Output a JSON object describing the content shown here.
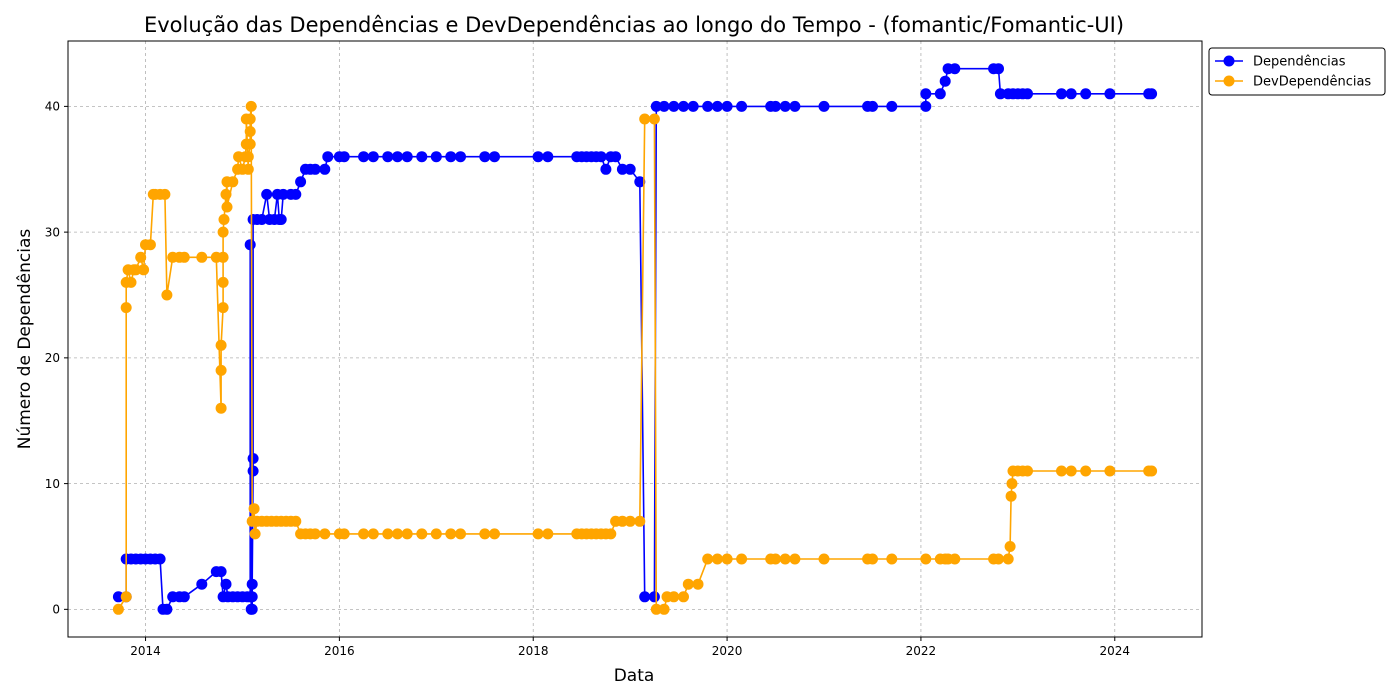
{
  "chart_data": {
    "type": "line",
    "title": "Evolução das Dependências e DevDependências ao longo do Tempo - (fomantic/Fomantic-UI)",
    "xlabel": "Data",
    "ylabel": "Número de Dependências",
    "xlim": [
      2013.2,
      2024.9
    ],
    "ylim": [
      -2.2,
      45.2
    ],
    "x_ticks": [
      2014,
      2016,
      2018,
      2020,
      2022,
      2024
    ],
    "y_ticks": [
      0,
      10,
      20,
      30,
      40
    ],
    "grid": true,
    "legend_position": "top-right outside",
    "series": [
      {
        "name": "Dependências",
        "color": "#0000ff",
        "points": [
          [
            2013.72,
            1
          ],
          [
            2013.8,
            1
          ],
          [
            2013.8,
            4
          ],
          [
            2013.85,
            4
          ],
          [
            2013.9,
            4
          ],
          [
            2013.95,
            4
          ],
          [
            2014.0,
            4
          ],
          [
            2014.05,
            4
          ],
          [
            2014.1,
            4
          ],
          [
            2014.15,
            4
          ],
          [
            2014.18,
            0
          ],
          [
            2014.22,
            0
          ],
          [
            2014.28,
            1
          ],
          [
            2014.35,
            1
          ],
          [
            2014.4,
            1
          ],
          [
            2014.58,
            2
          ],
          [
            2014.73,
            3
          ],
          [
            2014.78,
            3
          ],
          [
            2014.8,
            1
          ],
          [
            2014.83,
            2
          ],
          [
            2014.85,
            1
          ],
          [
            2014.9,
            1
          ],
          [
            2014.95,
            1
          ],
          [
            2015.0,
            1
          ],
          [
            2015.05,
            1
          ],
          [
            2015.08,
            1
          ],
          [
            2015.08,
            29
          ],
          [
            2015.09,
            0
          ],
          [
            2015.1,
            0
          ],
          [
            2015.1,
            1
          ],
          [
            2015.1,
            2
          ],
          [
            2015.11,
            11
          ],
          [
            2015.11,
            12
          ],
          [
            2015.11,
            31
          ],
          [
            2015.15,
            31
          ],
          [
            2015.2,
            31
          ],
          [
            2015.25,
            33
          ],
          [
            2015.28,
            31
          ],
          [
            2015.33,
            31
          ],
          [
            2015.36,
            33
          ],
          [
            2015.38,
            31
          ],
          [
            2015.4,
            31
          ],
          [
            2015.42,
            33
          ],
          [
            2015.5,
            33
          ],
          [
            2015.55,
            33
          ],
          [
            2015.6,
            34
          ],
          [
            2015.65,
            35
          ],
          [
            2015.7,
            35
          ],
          [
            2015.75,
            35
          ],
          [
            2015.85,
            35
          ],
          [
            2015.88,
            36
          ],
          [
            2016.0,
            36
          ],
          [
            2016.05,
            36
          ],
          [
            2016.25,
            36
          ],
          [
            2016.35,
            36
          ],
          [
            2016.5,
            36
          ],
          [
            2016.6,
            36
          ],
          [
            2016.7,
            36
          ],
          [
            2016.85,
            36
          ],
          [
            2017.0,
            36
          ],
          [
            2017.15,
            36
          ],
          [
            2017.25,
            36
          ],
          [
            2017.5,
            36
          ],
          [
            2017.6,
            36
          ],
          [
            2018.05,
            36
          ],
          [
            2018.15,
            36
          ],
          [
            2018.45,
            36
          ],
          [
            2018.5,
            36
          ],
          [
            2018.55,
            36
          ],
          [
            2018.6,
            36
          ],
          [
            2018.65,
            36
          ],
          [
            2018.7,
            36
          ],
          [
            2018.75,
            35
          ],
          [
            2018.8,
            36
          ],
          [
            2018.85,
            36
          ],
          [
            2018.92,
            35
          ],
          [
            2019.0,
            35
          ],
          [
            2019.1,
            34
          ],
          [
            2019.15,
            1
          ],
          [
            2019.25,
            1
          ],
          [
            2019.27,
            40
          ],
          [
            2019.35,
            40
          ],
          [
            2019.45,
            40
          ],
          [
            2019.55,
            40
          ],
          [
            2019.65,
            40
          ],
          [
            2019.8,
            40
          ],
          [
            2019.9,
            40
          ],
          [
            2020.0,
            40
          ],
          [
            2020.15,
            40
          ],
          [
            2020.45,
            40
          ],
          [
            2020.5,
            40
          ],
          [
            2020.6,
            40
          ],
          [
            2020.7,
            40
          ],
          [
            2021.0,
            40
          ],
          [
            2021.45,
            40
          ],
          [
            2021.5,
            40
          ],
          [
            2021.7,
            40
          ],
          [
            2022.05,
            40
          ],
          [
            2022.05,
            41
          ],
          [
            2022.2,
            41
          ],
          [
            2022.25,
            42
          ],
          [
            2022.28,
            43
          ],
          [
            2022.35,
            43
          ],
          [
            2022.75,
            43
          ],
          [
            2022.8,
            43
          ],
          [
            2022.82,
            41
          ],
          [
            2022.9,
            41
          ],
          [
            2022.95,
            41
          ],
          [
            2023.0,
            41
          ],
          [
            2023.05,
            41
          ],
          [
            2023.1,
            41
          ],
          [
            2023.45,
            41
          ],
          [
            2023.55,
            41
          ],
          [
            2023.7,
            41
          ],
          [
            2023.95,
            41
          ],
          [
            2024.35,
            41
          ],
          [
            2024.38,
            41
          ]
        ]
      },
      {
        "name": "DevDependências",
        "color": "#ffa500",
        "points": [
          [
            2013.72,
            0
          ],
          [
            2013.8,
            1
          ],
          [
            2013.8,
            24
          ],
          [
            2013.8,
            26
          ],
          [
            2013.82,
            27
          ],
          [
            2013.85,
            26
          ],
          [
            2013.88,
            27
          ],
          [
            2013.9,
            27
          ],
          [
            2013.95,
            28
          ],
          [
            2013.98,
            27
          ],
          [
            2014.0,
            29
          ],
          [
            2014.05,
            29
          ],
          [
            2014.08,
            33
          ],
          [
            2014.1,
            33
          ],
          [
            2014.15,
            33
          ],
          [
            2014.2,
            33
          ],
          [
            2014.22,
            25
          ],
          [
            2014.28,
            28
          ],
          [
            2014.35,
            28
          ],
          [
            2014.4,
            28
          ],
          [
            2014.58,
            28
          ],
          [
            2014.73,
            28
          ],
          [
            2014.78,
            16
          ],
          [
            2014.78,
            19
          ],
          [
            2014.78,
            21
          ],
          [
            2014.8,
            24
          ],
          [
            2014.8,
            26
          ],
          [
            2014.8,
            28
          ],
          [
            2014.8,
            30
          ],
          [
            2014.81,
            31
          ],
          [
            2014.83,
            33
          ],
          [
            2014.84,
            34
          ],
          [
            2014.84,
            32
          ],
          [
            2014.9,
            34
          ],
          [
            2014.95,
            35
          ],
          [
            2014.96,
            36
          ],
          [
            2015.0,
            35
          ],
          [
            2015.03,
            36
          ],
          [
            2015.04,
            37
          ],
          [
            2015.04,
            39
          ],
          [
            2015.06,
            35
          ],
          [
            2015.06,
            36
          ],
          [
            2015.08,
            37
          ],
          [
            2015.08,
            38
          ],
          [
            2015.08,
            39
          ],
          [
            2015.09,
            40
          ],
          [
            2015.1,
            7
          ],
          [
            2015.12,
            8
          ],
          [
            2015.13,
            6
          ],
          [
            2015.15,
            7
          ],
          [
            2015.2,
            7
          ],
          [
            2015.25,
            7
          ],
          [
            2015.3,
            7
          ],
          [
            2015.35,
            7
          ],
          [
            2015.4,
            7
          ],
          [
            2015.45,
            7
          ],
          [
            2015.5,
            7
          ],
          [
            2015.55,
            7
          ],
          [
            2015.6,
            6
          ],
          [
            2015.65,
            6
          ],
          [
            2015.7,
            6
          ],
          [
            2015.75,
            6
          ],
          [
            2015.85,
            6
          ],
          [
            2016.0,
            6
          ],
          [
            2016.05,
            6
          ],
          [
            2016.25,
            6
          ],
          [
            2016.35,
            6
          ],
          [
            2016.5,
            6
          ],
          [
            2016.6,
            6
          ],
          [
            2016.7,
            6
          ],
          [
            2016.85,
            6
          ],
          [
            2017.0,
            6
          ],
          [
            2017.15,
            6
          ],
          [
            2017.25,
            6
          ],
          [
            2017.5,
            6
          ],
          [
            2017.6,
            6
          ],
          [
            2018.05,
            6
          ],
          [
            2018.15,
            6
          ],
          [
            2018.45,
            6
          ],
          [
            2018.5,
            6
          ],
          [
            2018.55,
            6
          ],
          [
            2018.6,
            6
          ],
          [
            2018.65,
            6
          ],
          [
            2018.7,
            6
          ],
          [
            2018.75,
            6
          ],
          [
            2018.8,
            6
          ],
          [
            2018.85,
            7
          ],
          [
            2018.92,
            7
          ],
          [
            2019.0,
            7
          ],
          [
            2019.1,
            7
          ],
          [
            2019.15,
            39
          ],
          [
            2019.25,
            39
          ],
          [
            2019.27,
            0
          ],
          [
            2019.35,
            0
          ],
          [
            2019.38,
            1
          ],
          [
            2019.45,
            1
          ],
          [
            2019.55,
            1
          ],
          [
            2019.6,
            2
          ],
          [
            2019.7,
            2
          ],
          [
            2019.8,
            4
          ],
          [
            2019.9,
            4
          ],
          [
            2020.0,
            4
          ],
          [
            2020.15,
            4
          ],
          [
            2020.45,
            4
          ],
          [
            2020.5,
            4
          ],
          [
            2020.6,
            4
          ],
          [
            2020.7,
            4
          ],
          [
            2021.0,
            4
          ],
          [
            2021.45,
            4
          ],
          [
            2021.5,
            4
          ],
          [
            2021.7,
            4
          ],
          [
            2022.05,
            4
          ],
          [
            2022.2,
            4
          ],
          [
            2022.25,
            4
          ],
          [
            2022.28,
            4
          ],
          [
            2022.35,
            4
          ],
          [
            2022.75,
            4
          ],
          [
            2022.8,
            4
          ],
          [
            2022.9,
            4
          ],
          [
            2022.92,
            5
          ],
          [
            2022.93,
            9
          ],
          [
            2022.94,
            10
          ],
          [
            2022.95,
            11
          ],
          [
            2023.0,
            11
          ],
          [
            2023.05,
            11
          ],
          [
            2023.1,
            11
          ],
          [
            2023.45,
            11
          ],
          [
            2023.55,
            11
          ],
          [
            2023.7,
            11
          ],
          [
            2023.95,
            11
          ],
          [
            2024.35,
            11
          ],
          [
            2024.38,
            11
          ]
        ]
      }
    ]
  }
}
